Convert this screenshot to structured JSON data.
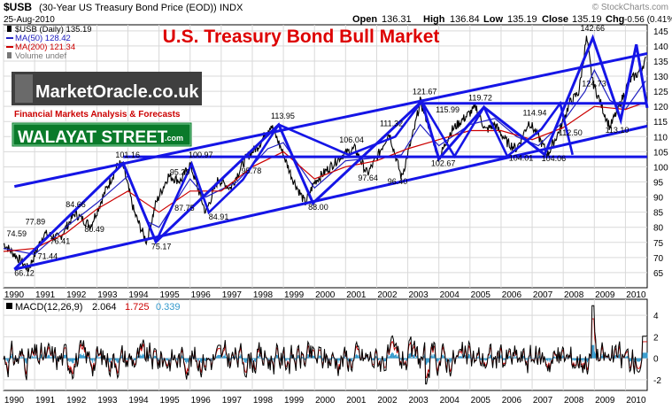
{
  "header": {
    "symbol": "$USB",
    "description": "(30-Year US Treasury Bond Price (EOD))",
    "exchange": "INDX",
    "date": "25-Aug-2010",
    "watermark": "© StockCharts.com",
    "open_label": "Open",
    "open": "136.31",
    "high_label": "High",
    "high": "136.84",
    "low_label": "Low",
    "low": "135.19",
    "close_label": "Close",
    "close": "135.19",
    "chg_label": "Chg",
    "chg": "-0.56 (0.41%)"
  },
  "legend": [
    {
      "label": "$USB (Daily) 135.19",
      "color": "#000000",
      "marker": "bar"
    },
    {
      "label": "MA(50) 128.42",
      "color": "#2020c0",
      "marker": "line"
    },
    {
      "label": "MA(200) 121.34",
      "color": "#cc0000",
      "marker": "line"
    },
    {
      "label": "Volume undef",
      "color": "#777777",
      "marker": "bar"
    }
  ],
  "overlay": {
    "title": "U.S. Treasury Bond Bull Market",
    "title_color": "#dd0000",
    "logo_text": "MarketOracle.co.uk",
    "logo_subtitle": "Financial Markets Analysis & Forecasts",
    "badge_text": "WALAYAT STREET",
    "badge_suffix": ".com",
    "badge_color": "#0a7a2a"
  },
  "colors": {
    "price": "#000000",
    "ma50": "#2020c0",
    "ma200": "#cc0000",
    "trendlines": "#1515e6",
    "macd": "#000000",
    "macd_signal": "#cc0000",
    "macd_hist": "#3399cc",
    "grid": "#d9d9d9"
  },
  "chart_data": [
    {
      "type": "line",
      "title": "",
      "x_label": "",
      "y_label": "",
      "x_range": [
        1990.0,
        2010.7
      ],
      "y_range": [
        60,
        147
      ],
      "y_ticks": [
        65,
        70,
        75,
        80,
        85,
        90,
        95,
        100,
        105,
        110,
        115,
        120,
        125,
        130,
        135,
        140,
        145
      ],
      "x_ticks": [
        "1990",
        "1991",
        "1992",
        "1993",
        "1994",
        "1995",
        "1996",
        "1997",
        "1998",
        "1999",
        "2000",
        "2001",
        "2002",
        "2003",
        "2004",
        "2005",
        "2006",
        "2007",
        "2008",
        "2009",
        "2010"
      ],
      "grid": true,
      "series": [
        {
          "name": "$USB (Daily)",
          "x": [
            1990.0,
            1990.4,
            1990.8,
            1991.3,
            1991.8,
            1992.3,
            1992.8,
            1993.3,
            1993.7,
            1993.85,
            1994.2,
            1994.6,
            1994.9,
            1995.3,
            1995.7,
            1996.0,
            1996.5,
            1996.9,
            1997.3,
            1997.8,
            1998.2,
            1998.6,
            1998.85,
            1999.3,
            1999.7,
            2000.0,
            2000.5,
            2000.9,
            2001.3,
            2001.7,
            2002.0,
            2002.4,
            2002.8,
            2003.2,
            2003.4,
            2003.7,
            2004.0,
            2004.4,
            2004.8,
            2005.2,
            2005.5,
            2005.8,
            2006.2,
            2006.5,
            2006.9,
            2007.2,
            2007.5,
            2007.9,
            2008.2,
            2008.5,
            2008.75,
            2008.95,
            2009.2,
            2009.5,
            2009.8,
            2010.1,
            2010.4,
            2010.65
          ],
          "y": [
            74.59,
            70.5,
            66.12,
            77.89,
            76.41,
            84.66,
            80.49,
            92.5,
            101.16,
            100.0,
            85.0,
            75.17,
            88.0,
            97.0,
            95.29,
            100.97,
            84.91,
            95.78,
            93.0,
            103.0,
            107.0,
            113.95,
            108.0,
            96.0,
            88.0,
            95.0,
            100.0,
            104.0,
            106.04,
            97.64,
            103.0,
            111.32,
            96.4,
            112.0,
            121.67,
            113.0,
            102.67,
            112.0,
            115.99,
            119.72,
            112.0,
            114.0,
            108.0,
            106.0,
            114.94,
            110.0,
            104.06,
            112.5,
            121.0,
            124.73,
            142.66,
            128.0,
            121.0,
            113.1,
            120.0,
            128.0,
            131.0,
            135.19
          ]
        },
        {
          "name": "MA(50)",
          "x": [
            1990.0,
            1991.0,
            1992.0,
            1993.0,
            1994.0,
            1994.6,
            1995.0,
            1996.0,
            1996.5,
            1997.5,
            1998.5,
            1999.0,
            2000.0,
            2001.0,
            2002.0,
            2002.8,
            2003.4,
            2004.0,
            2005.0,
            2005.8,
            2006.5,
            2007.2,
            2008.0,
            2008.7,
            2009.0,
            2009.5,
            2010.0,
            2010.65
          ],
          "y": [
            73.0,
            71.0,
            80.0,
            88.0,
            97.0,
            82.0,
            80.0,
            96.0,
            90.0,
            95.0,
            106.0,
            108.0,
            93.0,
            102.0,
            103.0,
            104.0,
            114.0,
            107.0,
            114.0,
            116.0,
            110.0,
            107.0,
            115.0,
            125.0,
            132.0,
            122.0,
            119.0,
            128.42
          ]
        },
        {
          "name": "MA(200)",
          "x": [
            1990.0,
            1991.0,
            1992.0,
            1993.0,
            1994.0,
            1995.0,
            1996.0,
            1997.0,
            1998.0,
            1999.0,
            2000.0,
            2001.0,
            2002.0,
            2003.0,
            2004.0,
            2005.0,
            2006.0,
            2007.0,
            2008.0,
            2009.0,
            2010.0,
            2010.65
          ],
          "y": [
            72.0,
            73.0,
            78.0,
            86.0,
            92.0,
            85.0,
            92.0,
            92.0,
            100.0,
            105.0,
            96.0,
            100.0,
            102.0,
            106.0,
            109.0,
            112.0,
            112.0,
            109.0,
            113.0,
            120.0,
            119.0,
            121.34
          ]
        }
      ],
      "annotations": [
        "74.59",
        "66.12",
        "77.89",
        "71.44",
        "76.41",
        "84.66",
        "80.49",
        "101.16",
        "75.17",
        "95.29",
        "87.75",
        "100.97",
        "84.91",
        "95.78",
        "113.95",
        "88.00",
        "106.04",
        "97.64",
        "111.32",
        "96.40",
        "121.67",
        "115.99",
        "102.67",
        "119.72",
        "114.94",
        "104.06",
        "104.01",
        "112.50",
        "142.66",
        "124.73",
        "113.10"
      ]
    },
    {
      "type": "line",
      "title": "MACD(12,26,9)",
      "y_range": [
        -3,
        5.5
      ],
      "y_ticks": [
        -2,
        0,
        2,
        4
      ],
      "legend_values": [
        "2.064",
        "1.725",
        "0.339"
      ],
      "legend_colors": [
        "#000000",
        "#cc0000",
        "#3399cc"
      ],
      "x_ticks": [
        "1990",
        "1991",
        "1992",
        "1993",
        "1994",
        "1995",
        "1996",
        "1997",
        "1998",
        "1999",
        "2000",
        "2001",
        "2002",
        "2003",
        "2004",
        "2005",
        "2006",
        "2007",
        "2008",
        "2009",
        "2010"
      ]
    }
  ]
}
